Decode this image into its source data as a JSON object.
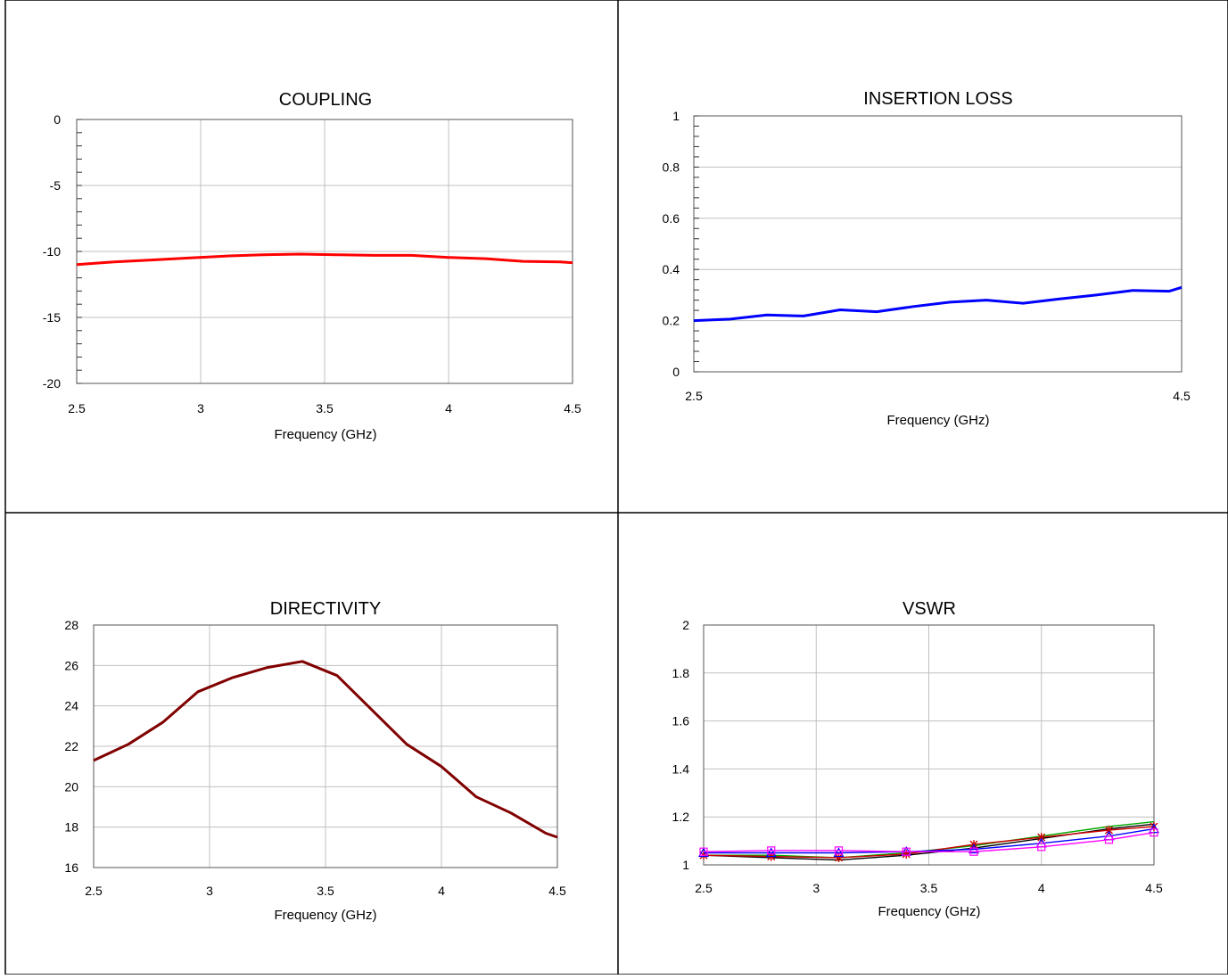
{
  "chart_data": [
    {
      "type": "line",
      "title": "COUPLING",
      "xlabel": "Frequency (GHz)",
      "ylabel": "",
      "xlim": [
        2.5,
        4.5
      ],
      "ylim": [
        -20,
        0
      ],
      "xticks": [
        2.5,
        3,
        3.5,
        4,
        4.5
      ],
      "xtick_labels": [
        "2.5",
        "3",
        "3.5",
        "4",
        "4.5"
      ],
      "yticks": [
        0,
        -5,
        -10,
        -15,
        -20
      ],
      "ytick_labels": [
        "0",
        "-5",
        "-10",
        "-15",
        "-20"
      ],
      "y_minor_step": 1,
      "x_grid": true,
      "y_grid": true,
      "series": [
        {
          "color": "#ff0000",
          "x": [
            2.5,
            2.65,
            2.8,
            2.95,
            3.1,
            3.25,
            3.4,
            3.55,
            3.7,
            3.85,
            4.0,
            4.15,
            4.3,
            4.45,
            4.5
          ],
          "y": [
            -11.0,
            -10.8,
            -10.65,
            -10.5,
            -10.35,
            -10.25,
            -10.2,
            -10.25,
            -10.3,
            -10.3,
            -10.45,
            -10.55,
            -10.75,
            -10.8,
            -10.85
          ]
        }
      ]
    },
    {
      "type": "line",
      "title": "INSERTION LOSS",
      "xlabel": "Frequency (GHz)",
      "ylabel": "",
      "xlim": [
        2.5,
        4.5
      ],
      "ylim": [
        0,
        1
      ],
      "xticks": [
        2.5,
        4.5
      ],
      "xtick_labels": [
        "2.5",
        "4.5"
      ],
      "yticks": [
        0,
        0.2,
        0.4,
        0.6,
        0.8,
        1
      ],
      "ytick_labels": [
        "0",
        "0.2",
        "0.4",
        "0.6",
        "0.8",
        "1"
      ],
      "y_minor_step": 0.04,
      "x_grid": false,
      "y_grid": true,
      "series": [
        {
          "color": "#0000ff",
          "x": [
            2.5,
            2.65,
            2.8,
            2.95,
            3.1,
            3.25,
            3.4,
            3.55,
            3.7,
            3.85,
            4.0,
            4.15,
            4.3,
            4.45,
            4.5
          ],
          "y": [
            0.2,
            0.206,
            0.222,
            0.218,
            0.242,
            0.235,
            0.255,
            0.272,
            0.28,
            0.268,
            0.285,
            0.3,
            0.318,
            0.315,
            0.33
          ]
        }
      ]
    },
    {
      "type": "line",
      "title": "DIRECTIVITY",
      "xlabel": "Frequency (GHz)",
      "ylabel": "",
      "xlim": [
        2.5,
        4.5
      ],
      "ylim": [
        16,
        28
      ],
      "xticks": [
        2.5,
        3,
        3.5,
        4,
        4.5
      ],
      "xtick_labels": [
        "2.5",
        "3",
        "3.5",
        "4",
        "4.5"
      ],
      "yticks": [
        16,
        18,
        20,
        22,
        24,
        26,
        28
      ],
      "ytick_labels": [
        "16",
        "18",
        "20",
        "22",
        "24",
        "26",
        "28"
      ],
      "y_minor_step": 0,
      "x_grid": true,
      "y_grid": true,
      "series": [
        {
          "color": "#800000",
          "x": [
            2.5,
            2.65,
            2.8,
            2.95,
            3.1,
            3.25,
            3.4,
            3.55,
            3.7,
            3.85,
            4.0,
            4.15,
            4.3,
            4.45,
            4.5
          ],
          "y": [
            21.3,
            22.1,
            23.2,
            24.7,
            25.4,
            25.9,
            26.2,
            25.5,
            23.8,
            22.1,
            21.0,
            19.5,
            18.7,
            17.7,
            17.5
          ]
        }
      ]
    },
    {
      "type": "line",
      "title": "VSWR",
      "xlabel": "Frequency (GHz)",
      "ylabel": "",
      "xlim": [
        2.5,
        4.5
      ],
      "ylim": [
        1,
        2
      ],
      "xticks": [
        2.5,
        3,
        3.5,
        4,
        4.5
      ],
      "xtick_labels": [
        "2.5",
        "3",
        "3.5",
        "4",
        "4.5"
      ],
      "yticks": [
        1,
        1.2,
        1.4,
        1.6,
        1.8,
        2
      ],
      "ytick_labels": [
        "1",
        "1.2",
        "1.4",
        "1.6",
        "1.8",
        "2"
      ],
      "y_minor_step": 0,
      "x_grid": true,
      "y_grid": true,
      "series": [
        {
          "color": "#00aa00",
          "x": [
            2.5,
            2.8,
            3.1,
            3.4,
            3.7,
            4.0,
            4.3,
            4.5
          ],
          "y": [
            1.04,
            1.04,
            1.03,
            1.05,
            1.08,
            1.12,
            1.16,
            1.18
          ]
        },
        {
          "color": "#000000",
          "x": [
            2.5,
            2.8,
            3.1,
            3.4,
            3.7,
            4.0,
            4.3,
            4.5
          ],
          "y": [
            1.04,
            1.03,
            1.02,
            1.04,
            1.07,
            1.11,
            1.15,
            1.17
          ]
        },
        {
          "color": "#cc0000",
          "marker": "star",
          "x": [
            2.5,
            2.8,
            3.1,
            3.4,
            3.7,
            4.0,
            4.3,
            4.5
          ],
          "y": [
            1.04,
            1.035,
            1.03,
            1.045,
            1.085,
            1.115,
            1.145,
            1.16
          ]
        },
        {
          "color": "#0000ff",
          "marker": "triangle",
          "x": [
            2.5,
            2.8,
            3.1,
            3.4,
            3.7,
            4.0,
            4.3,
            4.5
          ],
          "y": [
            1.05,
            1.05,
            1.05,
            1.055,
            1.065,
            1.09,
            1.12,
            1.15
          ]
        },
        {
          "color": "#ff00ff",
          "marker": "square",
          "x": [
            2.5,
            2.8,
            3.1,
            3.4,
            3.7,
            4.0,
            4.3,
            4.5
          ],
          "y": [
            1.055,
            1.06,
            1.06,
            1.055,
            1.055,
            1.075,
            1.105,
            1.135
          ]
        }
      ]
    }
  ]
}
